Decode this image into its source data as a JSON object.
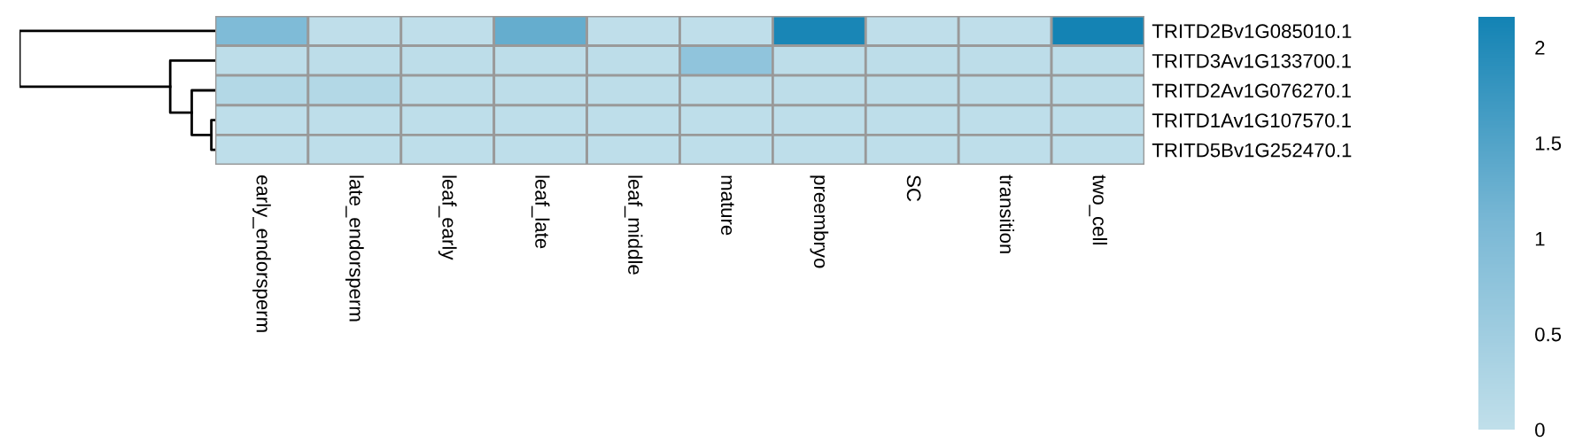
{
  "chart_data": {
    "type": "heatmap",
    "categories": [
      "early_endorsperm",
      "late_endorsperm",
      "leaf_early",
      "leaf_late",
      "leaf_middle",
      "mature",
      "preembryo",
      "SC",
      "transition",
      "two_cell"
    ],
    "y_categories": [
      "TRITD2Bv1G085010.1",
      "TRITD3Av1G133700.1",
      "TRITD2Av1G076270.1",
      "TRITD1Av1G107570.1",
      "TRITD5Bv1G252470.1"
    ],
    "cells": [
      [
        1.0,
        0.02,
        0.02,
        1.3,
        0.02,
        0.02,
        2.1,
        0.02,
        0.02,
        2.15
      ],
      [
        0.05,
        0.05,
        0.05,
        0.05,
        0.05,
        0.75,
        0.05,
        0.05,
        0.05,
        0.05
      ],
      [
        0.2,
        0.2,
        0.05,
        0.05,
        0.05,
        0.05,
        0.05,
        0.05,
        0.05,
        0.05
      ],
      [
        0.03,
        0.03,
        0.03,
        0.03,
        0.03,
        0.03,
        0.03,
        0.03,
        0.03,
        0.03
      ],
      [
        0.03,
        0.03,
        0.03,
        0.03,
        0.03,
        0.03,
        0.03,
        0.03,
        0.03,
        0.03
      ]
    ],
    "colors": [
      "#c0dfea",
      "#7ab8d5",
      "#1383b4"
    ],
    "clim": [
      0,
      2.16
    ],
    "cticks": [
      0,
      0.5,
      1,
      1.5,
      2
    ]
  }
}
